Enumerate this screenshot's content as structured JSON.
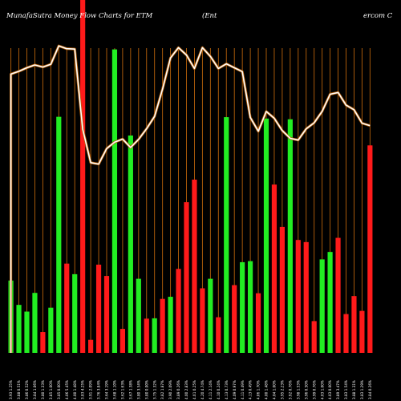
{
  "chart_data": {
    "type": "bar",
    "title": "MunafaSutra  Money Flow  Charts for ETM",
    "title_right": "(Ent",
    "title_far_right": "ercom C",
    "background": "#000000",
    "grid_color": "#b8620b",
    "line_color": "#ffffff",
    "line_outline_color": "#b8620b",
    "bar_up_color": "#22ee22",
    "bar_down_color": "#ff1a1a",
    "ylim": [
      0,
      100
    ],
    "categories": [
      "3.93 1.25%",
      "3.88 0.51%",
      "3.86 0.52%",
      "3.84 1.06%",
      "3.80 1.33%",
      "3.85 1.00%",
      "3.85 0.00%",
      "4.06 5.45%",
      "4.00 1.48%",
      "3.83 4.25%",
      "3.91 2.09%",
      "3.76 3.84%",
      "3.64 3.19%",
      "3.68 1.10%",
      "3.62 1.63%",
      "3.67 1.38%",
      "3.80 3.54%",
      "3.80 0.00%",
      "3.75 1.32%",
      "3.82 1.87%",
      "3.90 2.09%",
      "3.89 0.26%",
      "4.00 2.83%",
      "4.01 0.25%",
      "4.20 4.74%",
      "4.11 2.14%",
      "4.10 0.24%",
      "4.13 0.73%",
      "4.09 0.97%",
      "4.11 0.49%",
      "4.13 0.49%",
      "4.06 1.70%",
      "4.00 1.48%",
      "4.04 1.00%",
      "3.95 2.23%",
      "3.92 0.76%",
      "3.98 1.53%",
      "3.96 0.50%",
      "3.99 0.76%",
      "4.03 1.00%",
      "4.03 0.00%",
      "3.89 3.47%",
      "3.83 1.54%",
      "3.88 1.31%",
      "3.83 1.29%",
      "3.84 0.26%"
    ],
    "series": [
      {
        "name": "",
        "kind": "bar",
        "values": [
          20.5,
          13.6,
          11.7,
          17.0,
          5.9,
          12.8,
          66.9,
          25.3,
          22.3,
          100,
          3.7,
          25.0,
          21.8,
          86.0,
          6.8,
          61.6,
          21.0,
          9.7,
          9.8,
          15.3,
          15.9,
          23.8,
          42.7,
          49.1,
          18.3,
          21.0,
          10.1,
          66.8,
          19.2,
          25.7,
          26.0,
          16.9,
          66.4,
          47.7,
          35.7,
          66.2,
          32.0,
          31.4,
          9.0,
          26.5,
          28.6,
          32.6,
          11.0,
          16.1,
          11.9,
          58.8
        ],
        "colors": [
          "green",
          "green",
          "green",
          "green",
          "red",
          "green",
          "green",
          "red",
          "green",
          "red",
          "red",
          "red",
          "red",
          "green",
          "red",
          "green",
          "green",
          "red",
          "green",
          "red",
          "green",
          "red",
          "red",
          "red",
          "red",
          "green",
          "red",
          "green",
          "red",
          "green",
          "green",
          "red",
          "green",
          "red",
          "red",
          "green",
          "red",
          "red",
          "red",
          "green",
          "green",
          "red",
          "red",
          "red",
          "red",
          "red"
        ]
      },
      {
        "name": "",
        "kind": "line",
        "values": [
          79.0,
          79.8,
          80.8,
          81.6,
          81.0,
          81.8,
          87.0,
          86.2,
          86.1,
          63.4,
          53.9,
          53.5,
          57.9,
          59.7,
          60.6,
          58.2,
          60.5,
          63.5,
          67.0,
          74.7,
          83.6,
          86.5,
          84.4,
          80.6,
          86.5,
          84.0,
          80.6,
          81.9,
          80.8,
          79.7,
          66.7,
          62.8,
          68.4,
          66.5,
          63.0,
          60.8,
          60.3,
          63.5,
          65.2,
          68.4,
          73.3,
          73.8,
          70.2,
          68.9,
          65.1,
          64.4
        ]
      }
    ]
  }
}
